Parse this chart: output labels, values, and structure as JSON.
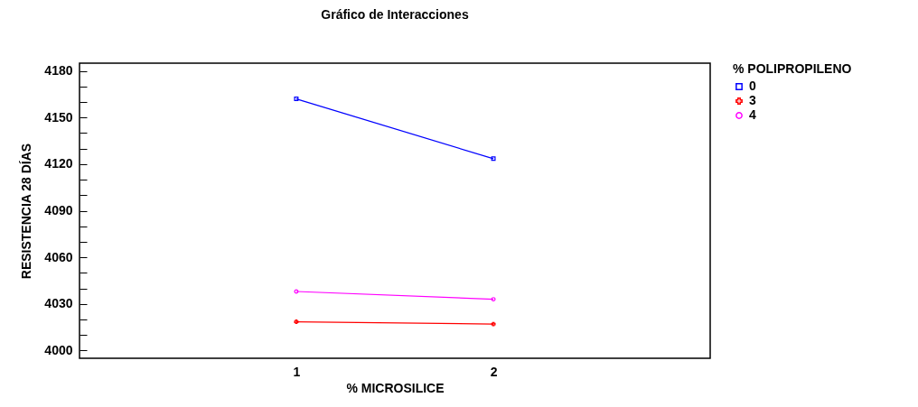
{
  "chart_data": {
    "type": "line",
    "title": "Gráfico de Interacciones",
    "xlabel": "% MICROSILICE",
    "ylabel": "RESISTENCIA 28 DÍAS",
    "legend_title": "% POLIPROPILENO",
    "x": [
      1,
      2
    ],
    "series": [
      {
        "name": "0",
        "color": "#0000ff",
        "marker": "square",
        "values": [
          4162,
          4123.5
        ]
      },
      {
        "name": "3",
        "color": "#ff0000",
        "marker": "cross",
        "values": [
          4018.5,
          4017
        ]
      },
      {
        "name": "4",
        "color": "#ff00ff",
        "marker": "circle",
        "values": [
          4038,
          4033
        ]
      }
    ],
    "xlim": [
      -0.1,
      3.1
    ],
    "xticks": [
      1,
      2
    ],
    "ylim": [
      3995,
      4185
    ],
    "yticks": [
      4000,
      {
        "value": 4010,
        "label": null
      },
      {
        "value": 4020,
        "label": null
      },
      4030,
      {
        "value": 4040,
        "label": null
      },
      {
        "value": 4050,
        "label": null
      },
      4060,
      {
        "value": 4070,
        "label": null
      },
      {
        "value": 4080,
        "label": null
      },
      4090,
      {
        "value": 4100,
        "label": null
      },
      {
        "value": 4110,
        "label": null
      },
      4120,
      {
        "value": 4130,
        "label": null
      },
      {
        "value": 4140,
        "label": null
      },
      4150,
      {
        "value": 4160,
        "label": null
      },
      {
        "value": 4170,
        "label": null
      },
      4180
    ],
    "grid": false,
    "legend": "top right",
    "line_style": "solid"
  }
}
